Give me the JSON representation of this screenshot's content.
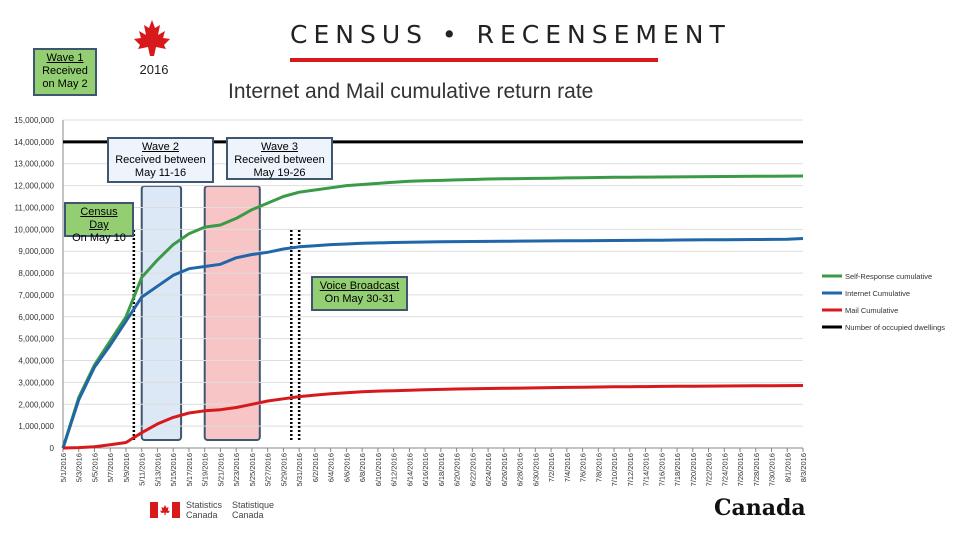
{
  "header": {
    "census_title": "CENSUS • RECENSEMENT",
    "year": "2016",
    "chart_title": "Internet and Mail cumulative return rate"
  },
  "callouts": {
    "wave1": [
      "Wave 1",
      "Received",
      "on May 2"
    ],
    "wave2": [
      "Wave 2",
      "Received between",
      "May 11-16"
    ],
    "wave3": [
      "Wave 3",
      "Received between",
      "May 19-26"
    ],
    "census_day": [
      "Census Day",
      "On May 10"
    ],
    "voice_broadcast": [
      "Voice Broadcast",
      "On May 30-31"
    ]
  },
  "footer": {
    "stat_can_en_1": "Statistics",
    "stat_can_en_2": "Canada",
    "stat_can_fr_1": "Statistique",
    "stat_can_fr_2": "Canada",
    "canada_wordmark": "Canada"
  },
  "colors": {
    "self_response": "#3a9a45",
    "internet": "#2066a8",
    "mail": "#d7191c",
    "dwellings": "#000000",
    "wave2_fill": "#dce8f5",
    "wave3_fill": "#f7c5c5",
    "callout_border": "#3f5670",
    "accent_red": "#d7191c"
  },
  "chart_data": {
    "type": "line",
    "title": "Internet and Mail cumulative return rate",
    "ylim": [
      0,
      15000000
    ],
    "yticks": [
      "0",
      "1,000,000",
      "2,000,000",
      "3,000,000",
      "4,000,000",
      "5,000,000",
      "6,000,000",
      "7,000,000",
      "8,000,000",
      "9,000,000",
      "10,000,000",
      "11,000,000",
      "12,000,000",
      "13,000,000",
      "14,000,000",
      "15,000,000"
    ],
    "categories": [
      "5/1/2016",
      "5/3/2016",
      "5/5/2016",
      "5/7/2016",
      "5/9/2016",
      "5/11/2016",
      "5/13/2016",
      "5/15/2016",
      "5/17/2016",
      "5/19/2016",
      "5/21/2016",
      "5/23/2016",
      "5/25/2016",
      "5/27/2016",
      "5/29/2016",
      "5/31/2016",
      "6/2/2016",
      "6/4/2016",
      "6/6/2016",
      "6/8/2016",
      "6/10/2016",
      "6/12/2016",
      "6/14/2016",
      "6/16/2016",
      "6/18/2016",
      "6/20/2016",
      "6/22/2016",
      "6/24/2016",
      "6/26/2016",
      "6/28/2016",
      "6/30/2016",
      "7/2/2016",
      "7/4/2016",
      "7/6/2016",
      "7/8/2016",
      "7/10/2016",
      "7/12/2016",
      "7/14/2016",
      "7/16/2016",
      "7/18/2016",
      "7/20/2016",
      "7/22/2016",
      "7/24/2016",
      "7/26/2016",
      "7/28/2016",
      "7/30/2016",
      "8/1/2016",
      "8/3/2016"
    ],
    "legend_position": "right",
    "series": [
      {
        "name": "Self-Response cumulative",
        "color_key": "self_response",
        "values": [
          0,
          2300000,
          3800000,
          4900000,
          6000000,
          7800000,
          8600000,
          9300000,
          9800000,
          10100000,
          10200000,
          10500000,
          10900000,
          11200000,
          11500000,
          11700000,
          11800000,
          11900000,
          12000000,
          12050000,
          12100000,
          12150000,
          12200000,
          12220000,
          12240000,
          12260000,
          12280000,
          12300000,
          12310000,
          12320000,
          12330000,
          12340000,
          12350000,
          12360000,
          12370000,
          12380000,
          12385000,
          12390000,
          12395000,
          12400000,
          12405000,
          12410000,
          12415000,
          12420000,
          12425000,
          12430000,
          12435000,
          12440000
        ]
      },
      {
        "name": "Internet Cumulative",
        "color_key": "internet",
        "values": [
          0,
          2200000,
          3700000,
          4700000,
          5800000,
          6900000,
          7400000,
          7900000,
          8200000,
          8300000,
          8400000,
          8700000,
          8850000,
          8950000,
          9100000,
          9200000,
          9250000,
          9300000,
          9330000,
          9360000,
          9380000,
          9400000,
          9410000,
          9420000,
          9430000,
          9440000,
          9445000,
          9450000,
          9455000,
          9460000,
          9465000,
          9470000,
          9475000,
          9480000,
          9485000,
          9490000,
          9495000,
          9500000,
          9505000,
          9510000,
          9515000,
          9520000,
          9525000,
          9530000,
          9535000,
          9540000,
          9550000,
          9580000
        ]
      },
      {
        "name": "Mail Cumulative",
        "color_key": "mail",
        "values": [
          0,
          20000,
          60000,
          150000,
          250000,
          700000,
          1100000,
          1400000,
          1600000,
          1700000,
          1750000,
          1850000,
          2000000,
          2150000,
          2250000,
          2350000,
          2420000,
          2480000,
          2530000,
          2570000,
          2600000,
          2620000,
          2640000,
          2660000,
          2680000,
          2700000,
          2710000,
          2720000,
          2730000,
          2740000,
          2750000,
          2760000,
          2770000,
          2780000,
          2790000,
          2800000,
          2805000,
          2810000,
          2815000,
          2820000,
          2825000,
          2830000,
          2835000,
          2840000,
          2845000,
          2850000,
          2855000,
          2860000
        ]
      },
      {
        "name": "Number of occupied dwellings",
        "color_key": "dwellings",
        "values": [
          14000000,
          14000000,
          14000000,
          14000000,
          14000000,
          14000000,
          14000000,
          14000000,
          14000000,
          14000000,
          14000000,
          14000000,
          14000000,
          14000000,
          14000000,
          14000000,
          14000000,
          14000000,
          14000000,
          14000000,
          14000000,
          14000000,
          14000000,
          14000000,
          14000000,
          14000000,
          14000000,
          14000000,
          14000000,
          14000000,
          14000000,
          14000000,
          14000000,
          14000000,
          14000000,
          14000000,
          14000000,
          14000000,
          14000000,
          14000000,
          14000000,
          14000000,
          14000000,
          14000000,
          14000000,
          14000000,
          14000000,
          14000000
        ]
      }
    ],
    "bands": [
      {
        "name": "Wave 2",
        "from": "5/11/2016",
        "to": "5/16/2016",
        "color_key": "wave2_fill"
      },
      {
        "name": "Wave 3",
        "from": "5/19/2016",
        "to": "5/26/2016",
        "color_key": "wave3_fill"
      }
    ],
    "markers": [
      {
        "name": "Census Day",
        "date": "5/10/2016"
      },
      {
        "name": "Voice Broadcast",
        "date": "5/30/2016"
      },
      {
        "name": "Voice Broadcast",
        "date": "5/31/2016"
      }
    ]
  }
}
